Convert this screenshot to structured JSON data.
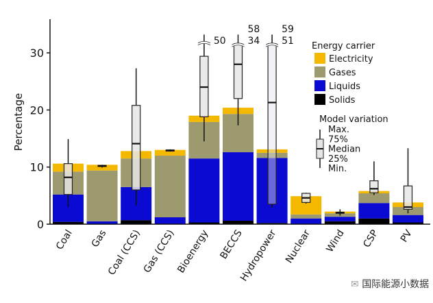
{
  "chart_data": {
    "type": "bar",
    "stacked": true,
    "ylabel": "Percentage",
    "ylim": [
      0,
      36
    ],
    "yticks": [
      0,
      10,
      20,
      30
    ],
    "grid": false,
    "legend_placement": "right",
    "categories": [
      "Coal",
      "Gas",
      "Coal (CCS)",
      "Gas (CCS)",
      "Bioenergy",
      "BECCS",
      "Hydropower",
      "Nuclear",
      "Wind",
      "CSP",
      "PV"
    ],
    "series": [
      {
        "name": "Solids",
        "color": "#000000",
        "values": [
          0.4,
          0,
          0.7,
          0,
          0.3,
          0.6,
          0.2,
          0,
          0.5,
          1.0,
          0.3
        ]
      },
      {
        "name": "Liquids",
        "color": "#0a0ad2",
        "values": [
          4.8,
          0.5,
          5.8,
          1.2,
          11.2,
          12.0,
          11.4,
          1.0,
          0.8,
          2.7,
          1.3
        ]
      },
      {
        "name": "Gases",
        "color": "#9c9a6e",
        "values": [
          4.0,
          8.9,
          5.0,
          10.8,
          6.4,
          6.7,
          0.9,
          0.7,
          0.6,
          1.7,
          1.4
        ]
      },
      {
        "name": "Electricity",
        "color": "#f5b800",
        "values": [
          1.4,
          1.0,
          1.3,
          1.0,
          1.1,
          1.1,
          0.6,
          3.2,
          0.3,
          0.4,
          0.8
        ]
      }
    ],
    "legend_title": "Energy carrier",
    "legend_order": [
      "Electricity",
      "Gases",
      "Liquids",
      "Solids"
    ],
    "model_variation": {
      "title": "Model variation",
      "labels": [
        "Max.",
        "75%",
        "Median",
        "25%",
        "Min."
      ],
      "boxes": [
        {
          "min": 3.0,
          "q1": 5.2,
          "median": 8.2,
          "q3": 10.6,
          "max": 14.9
        },
        {
          "min": 9.9,
          "q1": 10.1,
          "median": 10.2,
          "q3": 10.3,
          "max": 10.4
        },
        {
          "min": 3.3,
          "q1": 6.0,
          "median": 14.1,
          "q3": 20.8,
          "max": 27.3
        },
        {
          "min": 12.7,
          "q1": 12.8,
          "median": 12.9,
          "q3": 13.0,
          "max": 13.1
        },
        {
          "min": 14.5,
          "q1": 18.8,
          "median": 24.0,
          "q3": 29.4,
          "max": 50,
          "max_label": "50"
        },
        {
          "min": 17.3,
          "q1": 22.0,
          "median": 28.0,
          "q3": 34,
          "max": 58,
          "q3_label": "34",
          "max_label": "58"
        },
        {
          "min": 2.9,
          "q1": 3.5,
          "median": 21.3,
          "q3": 51,
          "max": 59,
          "q3_label": "51",
          "max_label": "59"
        },
        {
          "min": 3.6,
          "q1": 3.8,
          "median": 4.6,
          "q3": 5.4,
          "max": 5.5
        },
        {
          "min": 1.5,
          "q1": 1.9,
          "median": 2.0,
          "q3": 2.1,
          "max": 2.6
        },
        {
          "min": 5.1,
          "q1": 5.5,
          "median": 6.2,
          "q3": 7.6,
          "max": 11.0
        },
        {
          "min": 1.9,
          "q1": 2.6,
          "median": 3.0,
          "q3": 6.7,
          "max": 13.3
        }
      ]
    }
  },
  "watermark": "国际能源小数据"
}
